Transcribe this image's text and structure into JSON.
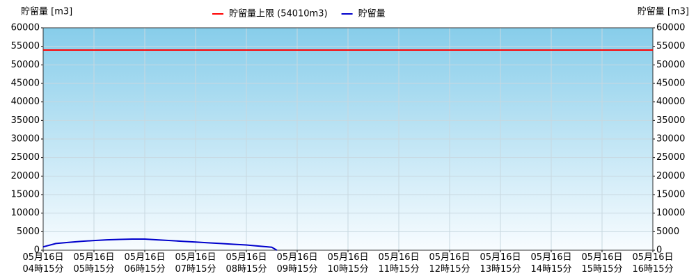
{
  "chart_data": {
    "type": "line",
    "y_axis_label": "貯留量 [m3]",
    "y2_axis_label": "貯留量 [m3]",
    "ylim": [
      0,
      60000
    ],
    "yticks": [
      0,
      5000,
      10000,
      15000,
      20000,
      25000,
      30000,
      35000,
      40000,
      45000,
      50000,
      55000,
      60000
    ],
    "y2lim": [
      0,
      60000
    ],
    "y2ticks": [
      0,
      5000,
      10000,
      15000,
      20000,
      25000,
      30000,
      35000,
      40000,
      45000,
      50000,
      55000,
      60000
    ],
    "xlim": [
      4.25,
      16.25
    ],
    "xticks": [
      {
        "value": 4.25,
        "label": "05月16日\n04時15分"
      },
      {
        "value": 5.25,
        "label": "05月16日\n05時15分"
      },
      {
        "value": 6.25,
        "label": "05月16日\n06時15分"
      },
      {
        "value": 7.25,
        "label": "05月16日\n07時15分"
      },
      {
        "value": 8.25,
        "label": "05月16日\n08時15分"
      },
      {
        "value": 9.25,
        "label": "05月16日\n09時15分"
      },
      {
        "value": 10.25,
        "label": "05月16日\n10時15分"
      },
      {
        "value": 11.25,
        "label": "05月16日\n11時15分"
      },
      {
        "value": 12.25,
        "label": "05月16日\n12時15分"
      },
      {
        "value": 13.25,
        "label": "05月16日\n13時15分"
      },
      {
        "value": 14.25,
        "label": "05月16日\n14時15分"
      },
      {
        "value": 15.25,
        "label": "05月16日\n15時15分"
      },
      {
        "value": 16.25,
        "label": "05月16日\n16時15分"
      }
    ],
    "grid": true,
    "series": [
      {
        "name": "貯留量上限 (54010m3)",
        "color": "#ff0000",
        "x": [
          4.25,
          16.25
        ],
        "values": [
          54010,
          54010
        ]
      },
      {
        "name": "貯留量",
        "color": "#0000cc",
        "x": [
          4.25,
          4.5,
          4.75,
          5.0,
          5.25,
          5.5,
          5.75,
          6.0,
          6.25,
          6.5,
          6.75,
          7.0,
          7.25,
          7.5,
          7.75,
          8.0,
          8.25,
          8.5,
          8.75,
          8.85
        ],
        "values": [
          900,
          1800,
          2100,
          2400,
          2600,
          2800,
          2900,
          3000,
          3000,
          2800,
          2600,
          2400,
          2200,
          2000,
          1800,
          1600,
          1400,
          1100,
          800,
          0
        ]
      }
    ]
  }
}
